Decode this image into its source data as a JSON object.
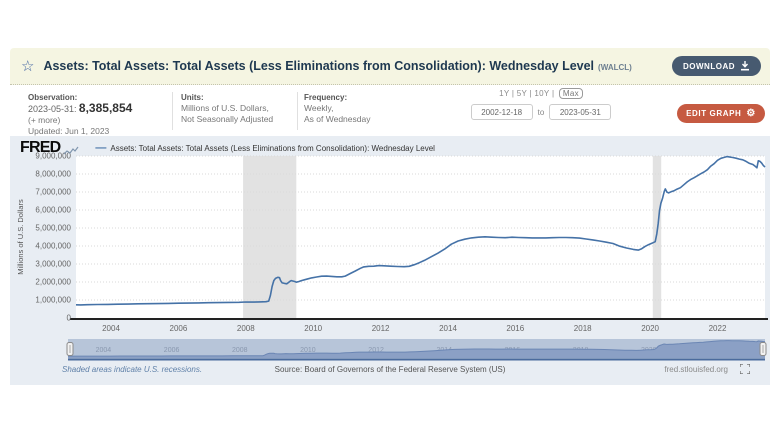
{
  "header": {
    "title": "Assets: Total Assets: Total Assets (Less Eliminations from Consolidation): Wednesday Level",
    "ticker": "(WALCL)",
    "download_label": "DOWNLOAD"
  },
  "meta": {
    "observation_label": "Observation:",
    "observation_date": "2023-05-31:",
    "observation_value": "8,385,854",
    "more_label": "(+ more)",
    "updated": "Updated: Jun 1, 2023",
    "units_label": "Units:",
    "units_line1": "Millions of U.S. Dollars,",
    "units_line2": "Not Seasonally Adjusted",
    "frequency_label": "Frequency:",
    "frequency_line1": "Weekly,",
    "frequency_line2": "As of Wednesday",
    "range_presets": "1Y | 5Y | 10Y |",
    "range_max": "Max",
    "date_from": "2002-12-18",
    "date_to_label": "to",
    "date_to": "2023-05-31",
    "edit_graph_label": "EDIT GRAPH"
  },
  "graph": {
    "logo": "FRED",
    "legend": "Assets: Total Assets: Total Assets (Less Eliminations from Consolidation): Wednesday Level"
  },
  "footer": {
    "recessions_note": "Shaded areas indicate U.S. recessions.",
    "source": "Source: Board of Governors of the Federal Reserve System (US)",
    "site": "fred.stlouisfed.org"
  },
  "colors": {
    "titlebar_bg": "#f5f5e2",
    "download_btn": "#475a70",
    "edit_btn": "#c65a41",
    "graph_bg": "#e8edf3",
    "line": "#4572a7",
    "recession_band": "#e2e2e2",
    "slider_band": "#b7c5d9",
    "slider_fill": "#8ba0c5"
  },
  "chart_data": {
    "type": "line",
    "title": "Assets: Total Assets: Total Assets (Less Eliminations from Consolidation): Wednesday Level (WALCL)",
    "xlabel": "",
    "ylabel": "Millions of U.S. Dollars",
    "x_range": [
      2002.96,
      2023.41
    ],
    "ylim": [
      0,
      9000000
    ],
    "grid": true,
    "legend_position": "top-left",
    "line_color": "#4572a7",
    "y_ticks": [
      "0",
      "1,000,000",
      "2,000,000",
      "3,000,000",
      "4,000,000",
      "5,000,000",
      "6,000,000",
      "7,000,000",
      "8,000,000",
      "9,000,000"
    ],
    "x_ticks": [
      2004,
      2006,
      2008,
      2010,
      2012,
      2014,
      2016,
      2018,
      2020,
      2022
    ],
    "recessions": [
      [
        2007.92,
        2009.5
      ],
      [
        2020.08,
        2020.33
      ]
    ],
    "series": [
      {
        "name": "WALCL",
        "points": [
          [
            2002.96,
            732000
          ],
          [
            2003.1,
            727000
          ],
          [
            2003.3,
            737000
          ],
          [
            2003.6,
            748000
          ],
          [
            2003.9,
            757000
          ],
          [
            2004.2,
            765000
          ],
          [
            2004.5,
            775000
          ],
          [
            2004.8,
            790000
          ],
          [
            2005.1,
            795000
          ],
          [
            2005.4,
            801000
          ],
          [
            2005.7,
            812000
          ],
          [
            2006.0,
            822000
          ],
          [
            2006.3,
            830000
          ],
          [
            2006.6,
            838000
          ],
          [
            2006.9,
            850000
          ],
          [
            2007.2,
            855000
          ],
          [
            2007.5,
            865000
          ],
          [
            2007.8,
            875000
          ],
          [
            2008.0,
            890000
          ],
          [
            2008.2,
            885000
          ],
          [
            2008.4,
            892000
          ],
          [
            2008.6,
            905000
          ],
          [
            2008.68,
            940000
          ],
          [
            2008.73,
            1250000
          ],
          [
            2008.78,
            1750000
          ],
          [
            2008.83,
            2080000
          ],
          [
            2008.88,
            2200000
          ],
          [
            2008.95,
            2260000
          ],
          [
            2009.0,
            2240000
          ],
          [
            2009.03,
            2090000
          ],
          [
            2009.08,
            1950000
          ],
          [
            2009.15,
            1920000
          ],
          [
            2009.22,
            1900000
          ],
          [
            2009.3,
            2020000
          ],
          [
            2009.35,
            2080000
          ],
          [
            2009.45,
            2030000
          ],
          [
            2009.5,
            1990000
          ],
          [
            2009.58,
            2030000
          ],
          [
            2009.65,
            2080000
          ],
          [
            2009.75,
            2130000
          ],
          [
            2009.85,
            2180000
          ],
          [
            2009.95,
            2230000
          ],
          [
            2010.1,
            2280000
          ],
          [
            2010.25,
            2320000
          ],
          [
            2010.4,
            2330000
          ],
          [
            2010.55,
            2310000
          ],
          [
            2010.7,
            2290000
          ],
          [
            2010.85,
            2290000
          ],
          [
            2010.95,
            2330000
          ],
          [
            2011.1,
            2470000
          ],
          [
            2011.25,
            2610000
          ],
          [
            2011.4,
            2760000
          ],
          [
            2011.5,
            2840000
          ],
          [
            2011.65,
            2870000
          ],
          [
            2011.8,
            2880000
          ],
          [
            2011.95,
            2910000
          ],
          [
            2012.1,
            2900000
          ],
          [
            2012.3,
            2880000
          ],
          [
            2012.5,
            2860000
          ],
          [
            2012.7,
            2850000
          ],
          [
            2012.85,
            2870000
          ],
          [
            2013.0,
            2960000
          ],
          [
            2013.15,
            3070000
          ],
          [
            2013.3,
            3200000
          ],
          [
            2013.5,
            3400000
          ],
          [
            2013.7,
            3600000
          ],
          [
            2013.9,
            3830000
          ],
          [
            2014.1,
            4100000
          ],
          [
            2014.3,
            4280000
          ],
          [
            2014.5,
            4380000
          ],
          [
            2014.7,
            4450000
          ],
          [
            2014.9,
            4490000
          ],
          [
            2015.1,
            4510000
          ],
          [
            2015.3,
            4490000
          ],
          [
            2015.5,
            4470000
          ],
          [
            2015.7,
            4460000
          ],
          [
            2015.9,
            4490000
          ],
          [
            2016.1,
            4470000
          ],
          [
            2016.3,
            4460000
          ],
          [
            2016.5,
            4450000
          ],
          [
            2016.7,
            4450000
          ],
          [
            2016.9,
            4450000
          ],
          [
            2017.1,
            4460000
          ],
          [
            2017.3,
            4470000
          ],
          [
            2017.5,
            4470000
          ],
          [
            2017.7,
            4460000
          ],
          [
            2017.9,
            4440000
          ],
          [
            2018.1,
            4390000
          ],
          [
            2018.3,
            4340000
          ],
          [
            2018.5,
            4280000
          ],
          [
            2018.7,
            4210000
          ],
          [
            2018.9,
            4140000
          ],
          [
            2019.1,
            3990000
          ],
          [
            2019.3,
            3890000
          ],
          [
            2019.5,
            3810000
          ],
          [
            2019.65,
            3770000
          ],
          [
            2019.75,
            3850000
          ],
          [
            2019.85,
            3980000
          ],
          [
            2019.95,
            4070000
          ],
          [
            2020.05,
            4150000
          ],
          [
            2020.15,
            4240000
          ],
          [
            2020.2,
            4670000
          ],
          [
            2020.24,
            5250000
          ],
          [
            2020.28,
            5960000
          ],
          [
            2020.32,
            6370000
          ],
          [
            2020.37,
            6660000
          ],
          [
            2020.42,
            7040000
          ],
          [
            2020.45,
            7170000
          ],
          [
            2020.5,
            6990000
          ],
          [
            2020.55,
            6950000
          ],
          [
            2020.62,
            7010000
          ],
          [
            2020.7,
            7060000
          ],
          [
            2020.8,
            7160000
          ],
          [
            2020.9,
            7240000
          ],
          [
            2021.0,
            7400000
          ],
          [
            2021.1,
            7560000
          ],
          [
            2021.2,
            7690000
          ],
          [
            2021.3,
            7790000
          ],
          [
            2021.4,
            7900000
          ],
          [
            2021.5,
            8010000
          ],
          [
            2021.6,
            8110000
          ],
          [
            2021.7,
            8240000
          ],
          [
            2021.8,
            8440000
          ],
          [
            2021.9,
            8570000
          ],
          [
            2022.0,
            8760000
          ],
          [
            2022.1,
            8870000
          ],
          [
            2022.2,
            8920000
          ],
          [
            2022.28,
            8965000
          ],
          [
            2022.35,
            8950000
          ],
          [
            2022.45,
            8915000
          ],
          [
            2022.55,
            8880000
          ],
          [
            2022.65,
            8830000
          ],
          [
            2022.75,
            8790000
          ],
          [
            2022.85,
            8700000
          ],
          [
            2022.95,
            8590000
          ],
          [
            2023.05,
            8530000
          ],
          [
            2023.12,
            8430000
          ],
          [
            2023.17,
            8342000
          ],
          [
            2023.21,
            8734000
          ],
          [
            2023.26,
            8705000
          ],
          [
            2023.31,
            8610000
          ],
          [
            2023.36,
            8480000
          ],
          [
            2023.41,
            8386000
          ]
        ]
      }
    ]
  }
}
